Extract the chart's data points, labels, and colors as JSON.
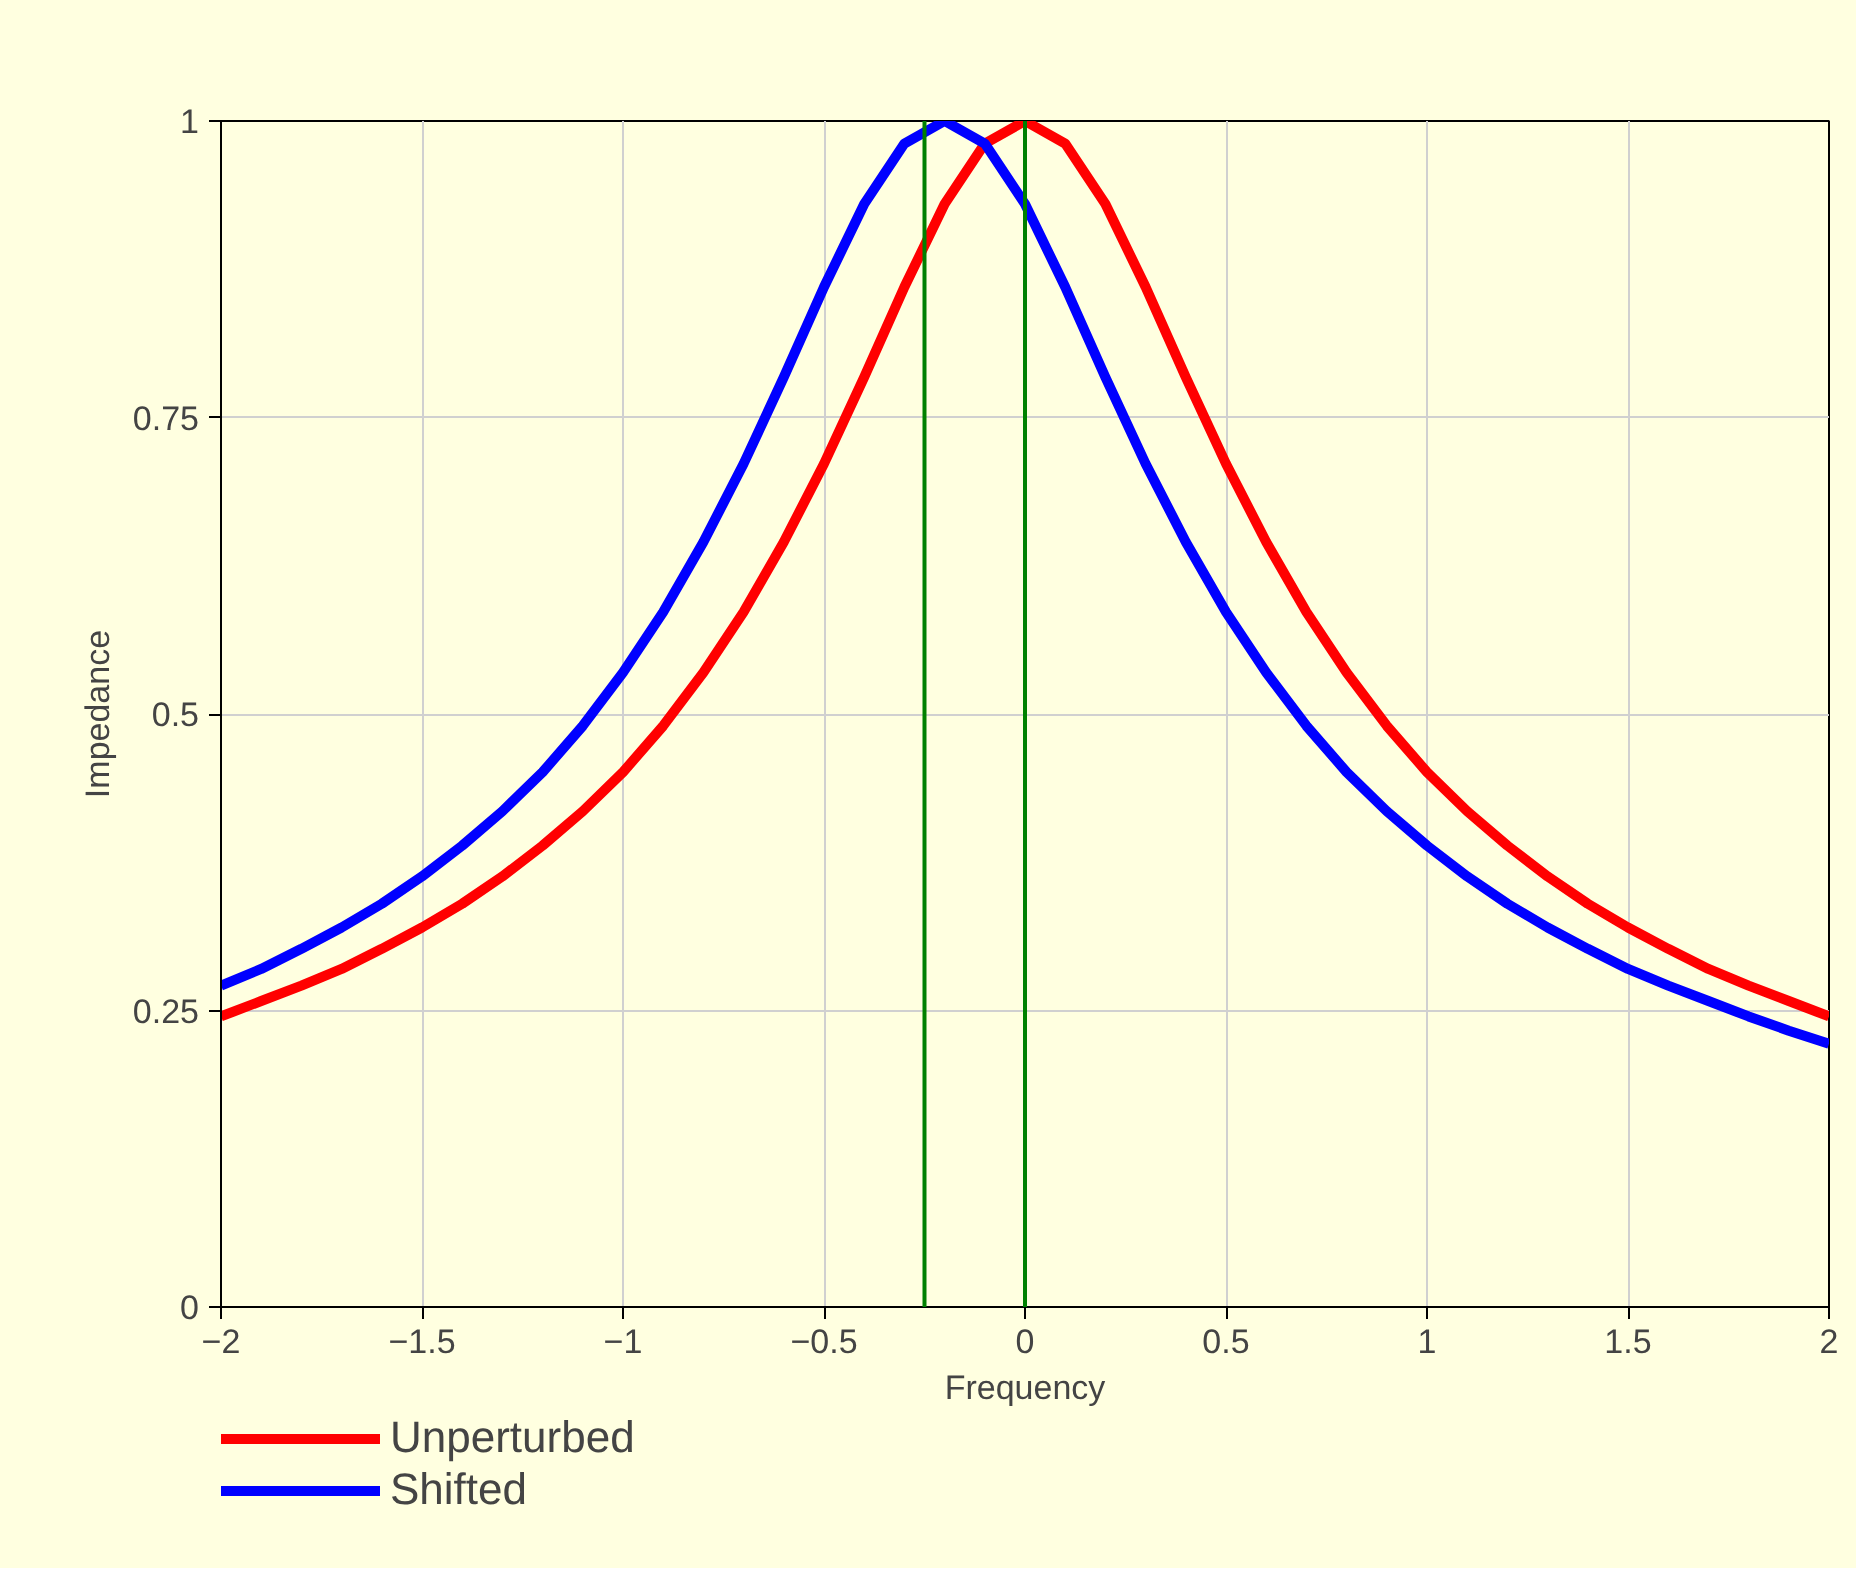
{
  "chart_data": {
    "type": "line",
    "xlabel": "Frequency",
    "ylabel": "Impedance",
    "x": [
      -2,
      -1.9,
      -1.8,
      -1.7,
      -1.6,
      -1.5,
      -1.4,
      -1.3,
      -1.2,
      -1.1,
      -1,
      -0.9,
      -0.8,
      -0.7,
      -0.6,
      -0.5,
      -0.4,
      -0.3,
      -0.2,
      -0.1,
      0,
      0.1,
      0.2,
      0.3,
      0.4,
      0.5,
      0.6,
      0.7,
      0.8,
      0.9,
      1,
      1.1,
      1.2,
      1.3,
      1.4,
      1.5,
      1.6,
      1.7,
      1.8,
      1.9,
      2
    ],
    "series": [
      {
        "name": "Unperturbed",
        "color": "#ff0000",
        "values": [
          0.245,
          0.258,
          0.271,
          0.285,
          0.302,
          0.32,
          0.34,
          0.363,
          0.389,
          0.418,
          0.451,
          0.49,
          0.535,
          0.586,
          0.645,
          0.711,
          0.784,
          0.86,
          0.93,
          0.981,
          1,
          0.981,
          0.93,
          0.86,
          0.784,
          0.711,
          0.645,
          0.586,
          0.535,
          0.49,
          0.451,
          0.418,
          0.389,
          0.363,
          0.34,
          0.32,
          0.302,
          0.285,
          0.271,
          0.258,
          0.245
        ]
      },
      {
        "name": "Shifted",
        "color": "#0000ff",
        "values": [
          0.271,
          0.285,
          0.302,
          0.32,
          0.34,
          0.363,
          0.389,
          0.418,
          0.451,
          0.49,
          0.535,
          0.586,
          0.645,
          0.711,
          0.784,
          0.86,
          0.93,
          0.981,
          1,
          0.981,
          0.93,
          0.86,
          0.784,
          0.711,
          0.645,
          0.586,
          0.535,
          0.49,
          0.451,
          0.418,
          0.389,
          0.363,
          0.34,
          0.32,
          0.302,
          0.285,
          0.271,
          0.258,
          0.245,
          0.233,
          0.222
        ]
      }
    ],
    "xlim": [
      -2,
      2
    ],
    "ylim": [
      0,
      1
    ],
    "xticks": [
      {
        "value": -2,
        "label": "−2"
      },
      {
        "value": -1.5,
        "label": "−1.5"
      },
      {
        "value": -1,
        "label": "−1"
      },
      {
        "value": -0.5,
        "label": "−0.5"
      },
      0,
      0.5,
      1,
      1.5,
      2
    ],
    "yticks": [
      0,
      0.25,
      0.5,
      0.75,
      1
    ],
    "ref_lines": [
      {
        "axis": "x",
        "value": -0.25,
        "color": "#008000"
      },
      {
        "axis": "x",
        "value": 0,
        "color": "#008000"
      }
    ],
    "grid": true,
    "legend": "bottom left",
    "marker": "none",
    "line_style": "solid"
  }
}
